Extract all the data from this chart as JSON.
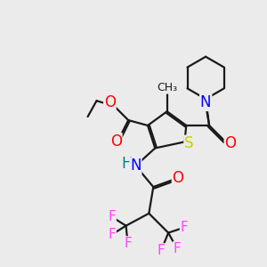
{
  "background_color": "#ebebeb",
  "atoms": {
    "S": {
      "color": "#cccc00",
      "fontsize": 12
    },
    "N": {
      "color": "#0000ff",
      "fontsize": 12
    },
    "O": {
      "color": "#ff0000",
      "fontsize": 12
    },
    "F": {
      "color": "#ff44ff",
      "fontsize": 11
    },
    "H": {
      "color": "#008080",
      "fontsize": 12
    }
  },
  "bond_color": "#1a1a1a",
  "bond_lw": 1.6
}
